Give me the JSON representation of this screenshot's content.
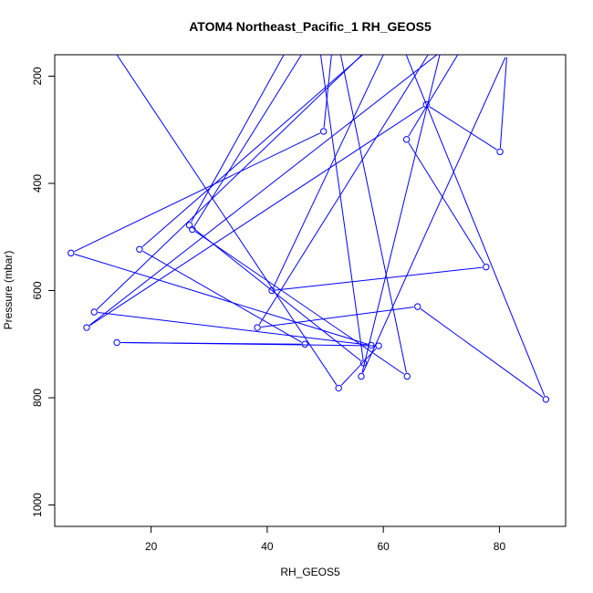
{
  "chart_data": {
    "type": "line",
    "title": "ATOM4 Northeast_Pacific_1 RH_GEOS5",
    "xlabel": "RH_GEOS5",
    "ylabel": "Pressure (mbar)",
    "xlim": [
      3.4,
      91.4
    ],
    "ylim": [
      1040,
      160
    ],
    "y_reversed": true,
    "xticks": [
      20,
      40,
      60,
      80
    ],
    "yticks": [
      200,
      400,
      600,
      800,
      1000
    ],
    "grid": false,
    "legend": "none",
    "series": [
      {
        "color": "#0000ff",
        "marker": "open-circle",
        "x": [
          44.4,
          26.6,
          56.6,
          48.6,
          27.1,
          64.1,
          51.6,
          49.7,
          6.2,
          57.9,
          10.2,
          61.8,
          88.0,
          65.9,
          38.3,
          71.0,
          56.2,
          81.3,
          80.1,
          67.4,
          8.9,
          76.0,
          64.0,
          77.7,
          40.8,
          62.5,
          18.0,
          46.5,
          14.1,
          59.2,
          52.3,
          10.6,
          55.4
        ],
        "y": [
          130,
          478,
          735,
          113,
          486,
          760,
          105,
          303,
          530,
          702,
          640,
          103,
          803,
          630,
          669,
          103,
          760,
          158,
          341,
          253,
          669,
          103,
          318,
          556,
          600,
          103,
          523,
          700,
          697,
          703,
          782,
          103,
          120
        ]
      }
    ]
  }
}
